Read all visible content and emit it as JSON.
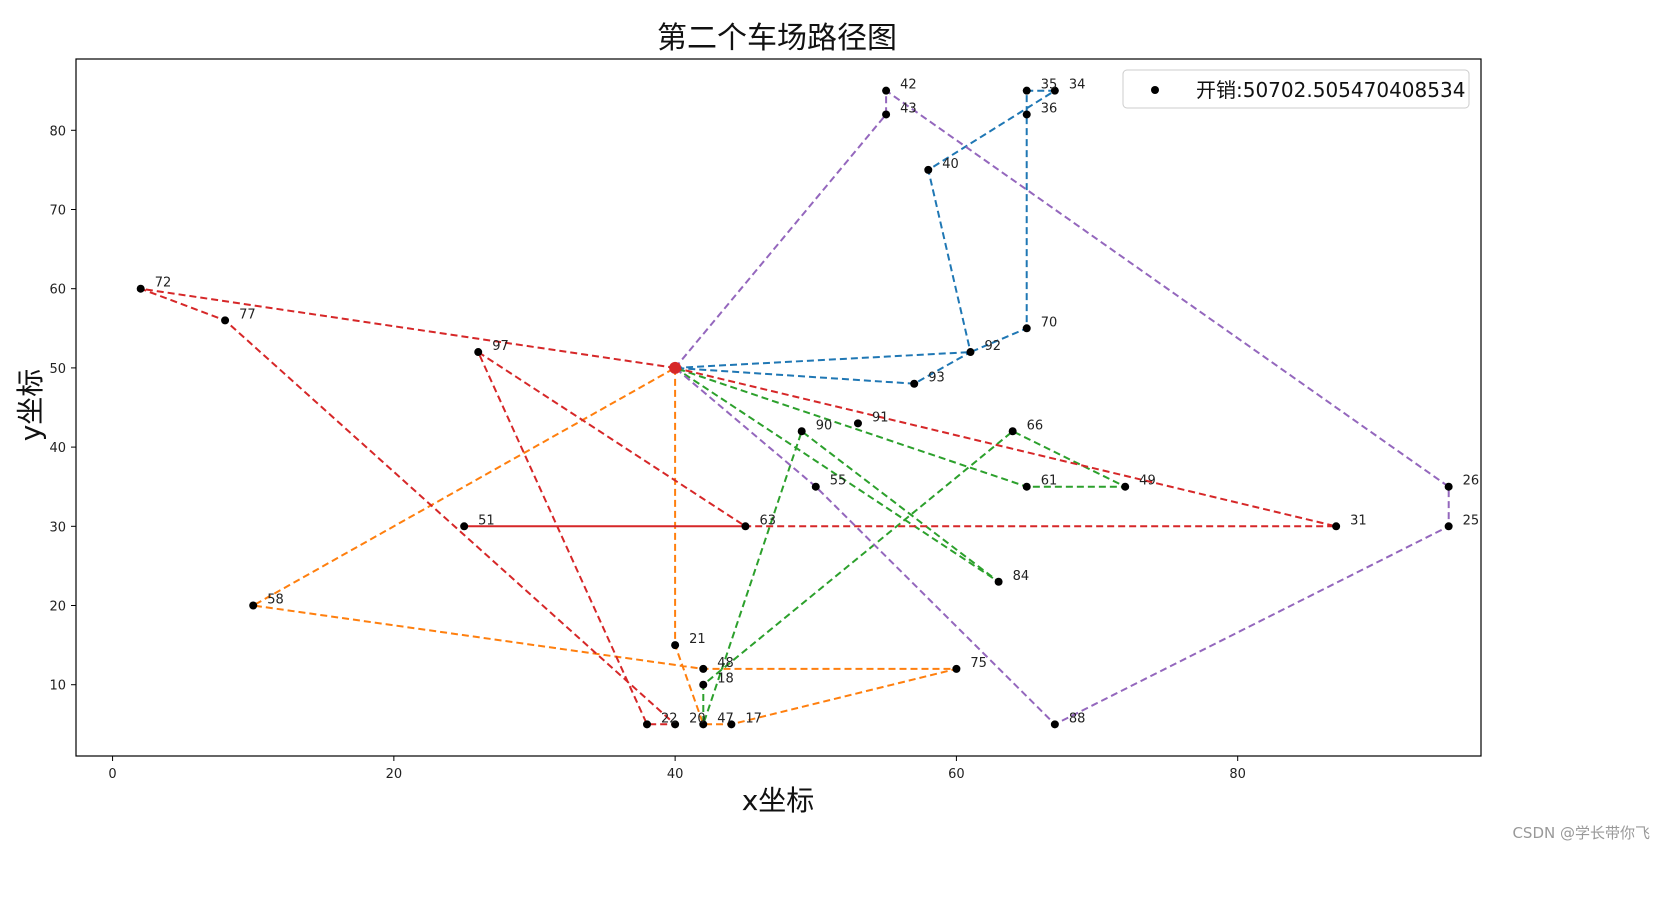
{
  "chart_data": {
    "type": "scatter",
    "title": "第二个车场路径图",
    "xlabel": "x坐标",
    "ylabel": "y坐标",
    "xlim": [
      -2.6,
      97.3
    ],
    "ylim": [
      1,
      89
    ],
    "xticks": [
      0,
      20,
      40,
      60,
      80
    ],
    "yticks": [
      10,
      20,
      30,
      40,
      50,
      60,
      70,
      80
    ],
    "legend": {
      "label": "开销:50702.505470408534",
      "placement": "top-right"
    },
    "depot": {
      "x": 40,
      "y": 50,
      "color": "#d62728"
    },
    "points": [
      {
        "id": "42",
        "x": 55,
        "y": 85
      },
      {
        "id": "43",
        "x": 55,
        "y": 82
      },
      {
        "id": "35",
        "x": 65,
        "y": 85
      },
      {
        "id": "34",
        "x": 67,
        "y": 85
      },
      {
        "id": "36",
        "x": 65,
        "y": 82
      },
      {
        "id": "40",
        "x": 58,
        "y": 75
      },
      {
        "id": "72",
        "x": 2,
        "y": 60
      },
      {
        "id": "77",
        "x": 8,
        "y": 56
      },
      {
        "id": "70",
        "x": 65,
        "y": 55
      },
      {
        "id": "97",
        "x": 26,
        "y": 52
      },
      {
        "id": "92",
        "x": 61,
        "y": 52
      },
      {
        "id": "93",
        "x": 57,
        "y": 48
      },
      {
        "id": "91",
        "x": 53,
        "y": 43
      },
      {
        "id": "90",
        "x": 49,
        "y": 42
      },
      {
        "id": "66",
        "x": 64,
        "y": 42
      },
      {
        "id": "55",
        "x": 50,
        "y": 35
      },
      {
        "id": "61",
        "x": 65,
        "y": 35
      },
      {
        "id": "49",
        "x": 72,
        "y": 35
      },
      {
        "id": "26",
        "x": 95,
        "y": 35
      },
      {
        "id": "51",
        "x": 25,
        "y": 30
      },
      {
        "id": "63",
        "x": 45,
        "y": 30
      },
      {
        "id": "31",
        "x": 87,
        "y": 30
      },
      {
        "id": "25",
        "x": 95,
        "y": 30
      },
      {
        "id": "84",
        "x": 63,
        "y": 23
      },
      {
        "id": "58",
        "x": 10,
        "y": 20
      },
      {
        "id": "21",
        "x": 40,
        "y": 15
      },
      {
        "id": "48",
        "x": 42,
        "y": 12
      },
      {
        "id": "75",
        "x": 60,
        "y": 12
      },
      {
        "id": "18",
        "x": 42,
        "y": 10
      },
      {
        "id": "22",
        "x": 38,
        "y": 5
      },
      {
        "id": "20",
        "x": 40,
        "y": 5
      },
      {
        "id": "47",
        "x": 42,
        "y": 5
      },
      {
        "id": "17",
        "x": 44,
        "y": 5
      },
      {
        "id": "88",
        "x": 67,
        "y": 5
      }
    ],
    "routes": [
      {
        "color": "#1f77b4",
        "stops": [
          "depot",
          "92",
          "70",
          "36",
          "35",
          "34",
          "40",
          "92",
          "93",
          "depot"
        ]
      },
      {
        "color": "#ff7f0e",
        "stops": [
          "depot",
          "21",
          "47",
          "17",
          "75",
          "48",
          "58",
          "depot"
        ]
      },
      {
        "color": "#2ca02c",
        "stops": [
          "depot",
          "84",
          "90",
          "47",
          "18",
          "66",
          "49",
          "61",
          "depot"
        ]
      },
      {
        "color": "#d62728",
        "stops": [
          "depot",
          "72",
          "77",
          "20",
          "22",
          "97",
          "63",
          "51",
          "31",
          "depot"
        ]
      },
      {
        "color": "#9467bd",
        "stops": [
          "depot",
          "43",
          "42",
          "26",
          "25",
          "88",
          "55",
          "depot"
        ]
      }
    ]
  },
  "watermark": "CSDN @学长带你飞"
}
